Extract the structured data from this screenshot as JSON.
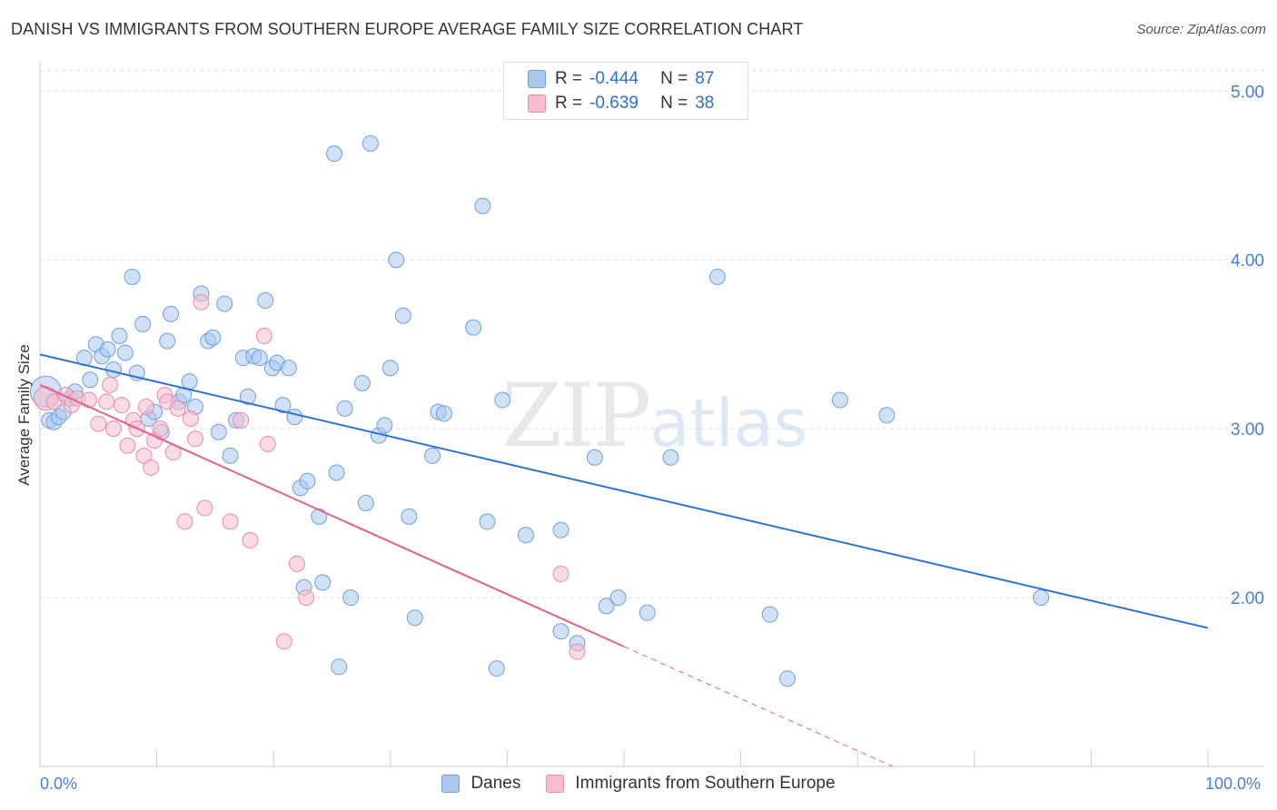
{
  "chart_data": {
    "type": "scatter",
    "title": "DANISH VS IMMIGRANTS FROM SOUTHERN EUROPE AVERAGE FAMILY SIZE CORRELATION CHART",
    "source": "Source: ZipAtlas.com",
    "xlabel": "",
    "ylabel": "Average Family Size",
    "xlim": [
      0,
      100
    ],
    "ylim": [
      1.0,
      5.12
    ],
    "x_tick_labels": {
      "left": "0.0%",
      "right": "100.0%"
    },
    "y_ticks": [
      {
        "value": 2.0,
        "label": "2.00"
      },
      {
        "value": 3.0,
        "label": "3.00"
      },
      {
        "value": 4.0,
        "label": "4.00"
      },
      {
        "value": 5.0,
        "label": "5.00"
      }
    ],
    "grid": true,
    "watermark": {
      "zip": "ZIP",
      "atlas": "atlas"
    },
    "legend": [
      {
        "name": "Danes",
        "r_label": "R =",
        "r_value": "-0.444",
        "n_label": "N =",
        "n_value": "87"
      },
      {
        "name": "Immigrants from Southern Europe",
        "r_label": "R =",
        "r_value": "-0.639",
        "n_label": "N =",
        "n_value": "38"
      }
    ],
    "colors": {
      "danes_fill": "#aac8ee",
      "danes_stroke": "#6f9fd8",
      "danes_line": "#2d72d2",
      "imm_fill": "#f6bdd0",
      "imm_stroke": "#e98aab",
      "imm_line": "#e4608c",
      "grid": "#dddddd",
      "tick_label": "#4a7fd0"
    },
    "series": [
      {
        "name": "Danes",
        "trend": {
          "x0": 0,
          "y0": 3.44,
          "x1": 100,
          "y1": 1.82
        },
        "points": [
          [
            0.5,
            3.22
          ],
          [
            0.8,
            3.05
          ],
          [
            1.2,
            3.04
          ],
          [
            1.6,
            3.07
          ],
          [
            2.0,
            3.1
          ],
          [
            2.6,
            3.18
          ],
          [
            3.0,
            3.22
          ],
          [
            3.8,
            3.42
          ],
          [
            4.3,
            3.29
          ],
          [
            4.8,
            3.5
          ],
          [
            5.3,
            3.43
          ],
          [
            5.8,
            3.47
          ],
          [
            6.3,
            3.35
          ],
          [
            6.8,
            3.55
          ],
          [
            7.3,
            3.45
          ],
          [
            7.9,
            3.9
          ],
          [
            8.3,
            3.33
          ],
          [
            8.8,
            3.62
          ],
          [
            9.3,
            3.06
          ],
          [
            9.8,
            3.1
          ],
          [
            10.4,
            2.98
          ],
          [
            10.9,
            3.52
          ],
          [
            11.2,
            3.68
          ],
          [
            11.9,
            3.16
          ],
          [
            12.3,
            3.2
          ],
          [
            12.8,
            3.28
          ],
          [
            13.3,
            3.13
          ],
          [
            13.8,
            3.8
          ],
          [
            14.4,
            3.52
          ],
          [
            14.8,
            3.54
          ],
          [
            15.3,
            2.98
          ],
          [
            15.8,
            3.74
          ],
          [
            16.3,
            2.84
          ],
          [
            16.8,
            3.05
          ],
          [
            17.4,
            3.42
          ],
          [
            17.8,
            3.19
          ],
          [
            18.3,
            3.43
          ],
          [
            18.8,
            3.42
          ],
          [
            19.3,
            3.76
          ],
          [
            19.9,
            3.36
          ],
          [
            20.3,
            3.39
          ],
          [
            20.8,
            3.14
          ],
          [
            21.3,
            3.36
          ],
          [
            21.8,
            3.07
          ],
          [
            22.3,
            2.65
          ],
          [
            22.6,
            2.06
          ],
          [
            22.9,
            2.69
          ],
          [
            23.9,
            2.48
          ],
          [
            24.2,
            2.09
          ],
          [
            25.2,
            4.63
          ],
          [
            25.4,
            2.74
          ],
          [
            25.6,
            1.59
          ],
          [
            26.1,
            3.12
          ],
          [
            26.6,
            2.0
          ],
          [
            27.6,
            3.27
          ],
          [
            27.9,
            2.56
          ],
          [
            28.3,
            4.69
          ],
          [
            29.0,
            2.96
          ],
          [
            29.5,
            3.02
          ],
          [
            30.0,
            3.36
          ],
          [
            30.5,
            4.0
          ],
          [
            31.1,
            3.67
          ],
          [
            31.6,
            2.48
          ],
          [
            32.1,
            1.88
          ],
          [
            33.6,
            2.84
          ],
          [
            34.1,
            3.1
          ],
          [
            34.6,
            3.09
          ],
          [
            37.1,
            3.6
          ],
          [
            37.9,
            4.32
          ],
          [
            38.3,
            2.45
          ],
          [
            39.1,
            1.58
          ],
          [
            39.6,
            3.17
          ],
          [
            41.6,
            2.37
          ],
          [
            44.6,
            1.8
          ],
          [
            44.6,
            2.4
          ],
          [
            46.0,
            1.73
          ],
          [
            47.5,
            2.83
          ],
          [
            48.5,
            1.95
          ],
          [
            49.5,
            2.0
          ],
          [
            52.0,
            1.91
          ],
          [
            54.0,
            2.83
          ],
          [
            58.0,
            3.9
          ],
          [
            62.5,
            1.9
          ],
          [
            64.0,
            1.52
          ],
          [
            68.5,
            3.17
          ],
          [
            72.5,
            3.08
          ],
          [
            85.7,
            2.0
          ]
        ]
      },
      {
        "name": "Immigrants from Southern Europe",
        "trend": {
          "x0": 0,
          "y0": 3.26,
          "x1": 50,
          "y1": 1.71,
          "dash_x1": 73,
          "dash_y1": 1.0
        },
        "points": [
          [
            0.5,
            3.18
          ],
          [
            1.2,
            3.16
          ],
          [
            2.2,
            3.2
          ],
          [
            2.7,
            3.14
          ],
          [
            3.2,
            3.18
          ],
          [
            4.2,
            3.17
          ],
          [
            5.0,
            3.03
          ],
          [
            5.7,
            3.16
          ],
          [
            6.0,
            3.26
          ],
          [
            6.3,
            3.0
          ],
          [
            7.0,
            3.14
          ],
          [
            7.5,
            2.9
          ],
          [
            8.0,
            3.05
          ],
          [
            8.3,
            3.0
          ],
          [
            8.9,
            2.84
          ],
          [
            9.1,
            3.13
          ],
          [
            9.5,
            2.77
          ],
          [
            9.8,
            2.93
          ],
          [
            10.3,
            3.0
          ],
          [
            10.7,
            3.2
          ],
          [
            10.9,
            3.16
          ],
          [
            11.4,
            2.86
          ],
          [
            11.8,
            3.12
          ],
          [
            12.4,
            2.45
          ],
          [
            12.9,
            3.06
          ],
          [
            13.3,
            2.94
          ],
          [
            13.8,
            3.75
          ],
          [
            14.1,
            2.53
          ],
          [
            16.3,
            2.45
          ],
          [
            17.2,
            3.05
          ],
          [
            18.0,
            2.34
          ],
          [
            19.2,
            3.55
          ],
          [
            19.5,
            2.91
          ],
          [
            20.9,
            1.74
          ],
          [
            22.0,
            2.2
          ],
          [
            22.8,
            2.0
          ],
          [
            44.6,
            2.14
          ],
          [
            46.0,
            1.68
          ]
        ]
      }
    ]
  }
}
